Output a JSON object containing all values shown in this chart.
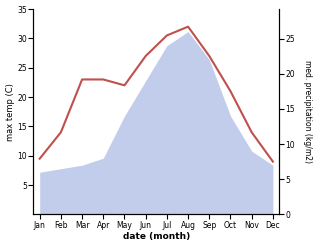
{
  "months": [
    "Jan",
    "Feb",
    "Mar",
    "Apr",
    "May",
    "Jun",
    "Jul",
    "Aug",
    "Sep",
    "Oct",
    "Nov",
    "Dec"
  ],
  "temp": [
    9.5,
    14.0,
    23.0,
    23.0,
    22.0,
    27.0,
    30.5,
    32.0,
    27.0,
    21.0,
    14.0,
    9.0
  ],
  "precip": [
    6.0,
    6.5,
    7.0,
    8.0,
    14.0,
    19.0,
    24.0,
    26.0,
    22.0,
    14.0,
    9.0,
    7.0
  ],
  "temp_color": "#c0504d",
  "precip_color": "#b8c4e8",
  "temp_ylim": [
    0,
    35
  ],
  "precip_ylim": [
    0,
    29.2
  ],
  "left_ylabel": "max temp (C)",
  "right_ylabel": "med. precipitation (kg/m2)",
  "xlabel": "date (month)",
  "temp_yticks": [
    5,
    10,
    15,
    20,
    25,
    30,
    35
  ],
  "precip_yticks": [
    0,
    5,
    10,
    15,
    20,
    25
  ],
  "background_color": "#ffffff"
}
